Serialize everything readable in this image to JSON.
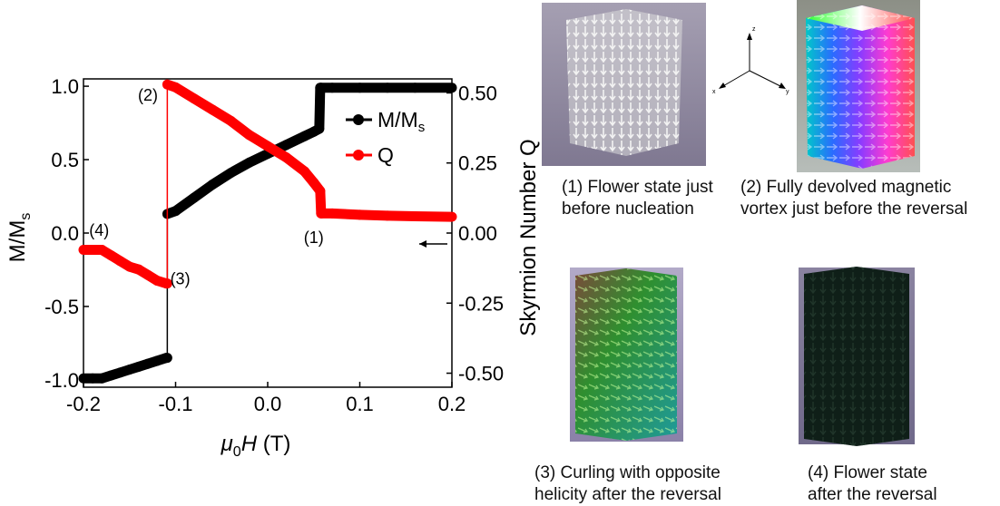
{
  "chart_data": {
    "type": "line",
    "xlabel_mu": "μ",
    "xlabel_sub": "0",
    "xlabel_H": "H",
    "xlabel_unit": " (T)",
    "ylabel_left_main": "M/M",
    "ylabel_left_sub": "s",
    "ylabel_right": "Skyrmion Number Q",
    "xlim": [
      -0.2,
      0.2
    ],
    "ylim_left": [
      -1.05,
      1.05
    ],
    "ylim_right": [
      -0.55,
      0.55
    ],
    "x_ticks": [
      "-0.2",
      "-0.1",
      "0.0",
      "0.1",
      "0.2"
    ],
    "x_tick_values": [
      -0.2,
      -0.1,
      0.0,
      0.1,
      0.2
    ],
    "y_left_ticks": [
      "-1.0",
      "-0.5",
      "0.0",
      "0.5",
      "1.0"
    ],
    "y_left_tick_values": [
      -1.0,
      -0.5,
      0.0,
      0.5,
      1.0
    ],
    "y_right_ticks": [
      "-0.50",
      "-0.25",
      "0.00",
      "0.25",
      "0.50"
    ],
    "y_right_tick_values": [
      -0.5,
      -0.25,
      0.0,
      0.25,
      0.5
    ],
    "legend_position": "top-right",
    "series": [
      {
        "name": "M/M",
        "name_sub": "s",
        "color": "#000000",
        "axis": "left",
        "x": [
          -0.2,
          -0.19,
          -0.18,
          -0.17,
          -0.16,
          -0.15,
          -0.14,
          -0.13,
          -0.12,
          -0.11,
          -0.109,
          -0.109,
          -0.1,
          -0.08,
          -0.06,
          -0.04,
          -0.02,
          0.0,
          0.02,
          0.04,
          0.05,
          0.056,
          0.057,
          0.058,
          0.07,
          0.1,
          0.13,
          0.16,
          0.2
        ],
        "y": [
          -0.99,
          -0.99,
          -0.99,
          -0.97,
          -0.95,
          -0.93,
          -0.91,
          -0.89,
          -0.87,
          -0.85,
          -0.85,
          0.13,
          0.15,
          0.24,
          0.33,
          0.41,
          0.48,
          0.54,
          0.6,
          0.66,
          0.69,
          0.71,
          0.99,
          0.99,
          0.99,
          0.99,
          0.99,
          0.99,
          0.99
        ]
      },
      {
        "name": "Q",
        "color": "#ff0000",
        "axis": "right",
        "x": [
          -0.2,
          -0.19,
          -0.18,
          -0.17,
          -0.16,
          -0.15,
          -0.14,
          -0.13,
          -0.12,
          -0.11,
          -0.109,
          -0.109,
          -0.1,
          -0.08,
          -0.06,
          -0.04,
          -0.02,
          0.0,
          0.02,
          0.04,
          0.05,
          0.057,
          0.058,
          0.07,
          0.1,
          0.13,
          0.16,
          0.2
        ],
        "y": [
          -0.06,
          -0.06,
          -0.06,
          -0.08,
          -0.1,
          -0.12,
          -0.13,
          -0.15,
          -0.17,
          -0.18,
          -0.18,
          0.53,
          0.52,
          0.48,
          0.44,
          0.4,
          0.35,
          0.31,
          0.27,
          0.22,
          0.18,
          0.15,
          0.07,
          0.07,
          0.065,
          0.062,
          0.06,
          0.058
        ]
      }
    ],
    "annotations": [
      {
        "label": "(1)",
        "x": 0.05,
        "y": -0.02,
        "axis": "left"
      },
      {
        "label": "(2)",
        "x": -0.13,
        "y": 0.95,
        "axis": "left"
      },
      {
        "label": "(3)",
        "x": -0.095,
        "y": -0.3,
        "axis": "left"
      },
      {
        "label": "(4)",
        "x": -0.183,
        "y": 0.03,
        "axis": "left"
      }
    ]
  },
  "panels": [
    {
      "caption_line1": "(1) Flower state just",
      "caption_line2": "before nucleation"
    },
    {
      "caption_line1": "(2) Fully devolved magnetic",
      "caption_line2": "vortex just before the reversal"
    },
    {
      "caption_line1": "(3) Curling with opposite",
      "caption_line2": "helicity after the reversal"
    },
    {
      "caption_line1": "(4) Flower state",
      "caption_line2": "after the reversal"
    }
  ],
  "axes_labels": {
    "z": "z",
    "x": "x",
    "y": "y"
  }
}
